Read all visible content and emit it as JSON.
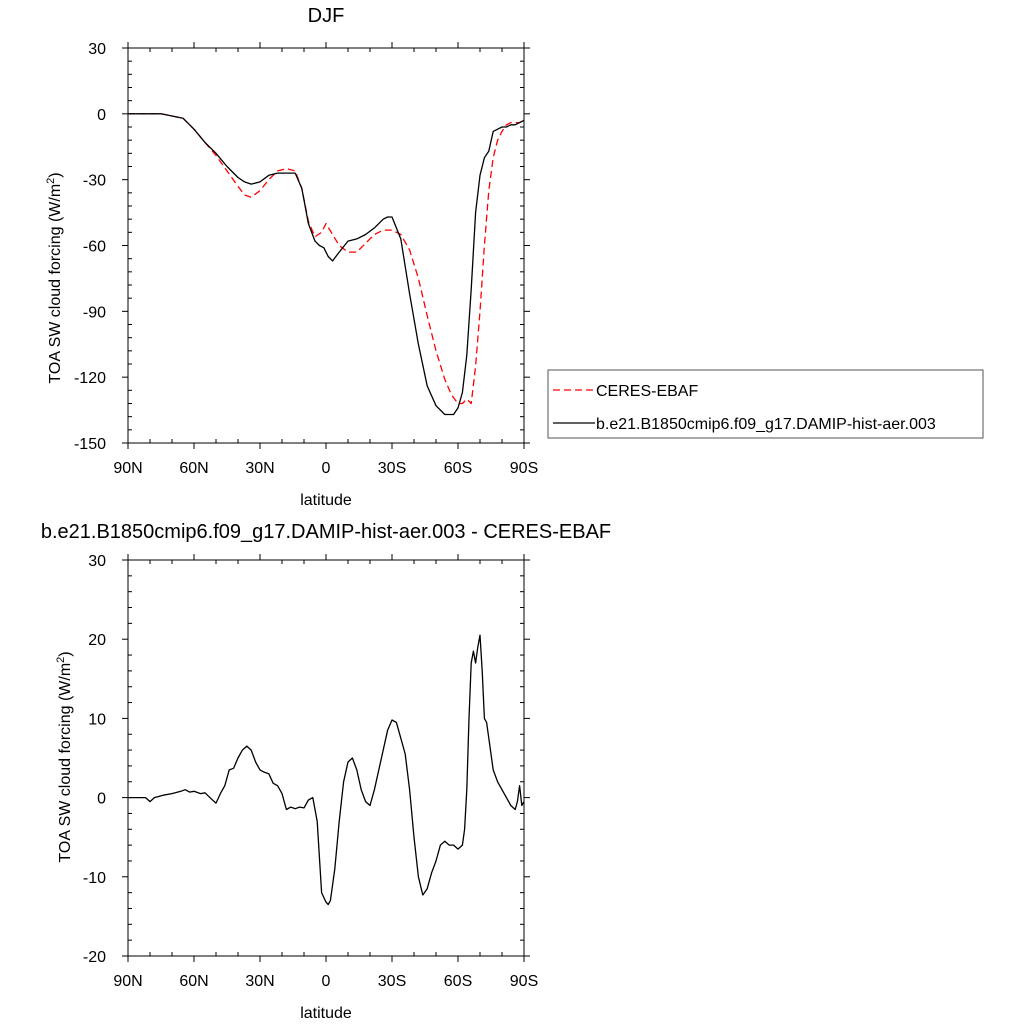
{
  "chart_data": [
    {
      "type": "line",
      "title": "DJF",
      "xlabel": "latitude",
      "ylabel": "TOA SW cloud forcing (W/m",
      "ylabel_sup": "2",
      "ylabel_close": ")",
      "xlim": [
        90,
        -90
      ],
      "ylim": [
        -150,
        30
      ],
      "x_ticks": [
        90,
        60,
        30,
        0,
        -30,
        -60,
        -90
      ],
      "x_tick_labels": [
        "90N",
        "60N",
        "30N",
        "0",
        "30S",
        "60S",
        "90S"
      ],
      "y_ticks": [
        30,
        0,
        -30,
        -60,
        -90,
        -120,
        -150
      ],
      "y_tick_labels": [
        "30",
        "0",
        "-30",
        "-60",
        "-90",
        "-120",
        "-150"
      ],
      "legend": "right",
      "series": [
        {
          "name": "CERES-EBAF",
          "color": "#ff0000",
          "dash": "dashed",
          "x": [
            90,
            85,
            80,
            75,
            70,
            65,
            60,
            55,
            50,
            45,
            40,
            37,
            34,
            30,
            26,
            22,
            18,
            14,
            11,
            8,
            5,
            2,
            0,
            -3,
            -6,
            -10,
            -14,
            -18,
            -22,
            -26,
            -30,
            -34,
            -38,
            -42,
            -46,
            -50,
            -54,
            -57,
            -60,
            -62,
            -64,
            -66,
            -68,
            -70,
            -72,
            -74,
            -76,
            -78,
            -80,
            -82,
            -84,
            -86,
            -88,
            -90
          ],
          "y": [
            0,
            0,
            0,
            0,
            -1,
            -2,
            -7,
            -13,
            -19,
            -26,
            -33,
            -37,
            -38,
            -35,
            -30,
            -26,
            -25,
            -26,
            -34,
            -49,
            -56,
            -54,
            -50,
            -55,
            -60,
            -63,
            -63,
            -59,
            -55,
            -53,
            -53,
            -55,
            -62,
            -75,
            -92,
            -108,
            -121,
            -128,
            -132,
            -132,
            -130,
            -132,
            -115,
            -90,
            -60,
            -35,
            -20,
            -12,
            -8,
            -5,
            -4,
            -4,
            -4,
            -3
          ]
        },
        {
          "name": "b.e21.B1850cmip6.f09_g17.DAMIP-hist-aer.003",
          "color": "#000000",
          "dash": "solid",
          "x": [
            90,
            85,
            80,
            75,
            70,
            65,
            60,
            55,
            50,
            45,
            40,
            37,
            34,
            30,
            26,
            22,
            18,
            14,
            11,
            8,
            5,
            3,
            1,
            -1,
            -3,
            -6,
            -10,
            -14,
            -18,
            -22,
            -26,
            -28,
            -30,
            -34,
            -38,
            -42,
            -46,
            -50,
            -54,
            -58,
            -60,
            -62,
            -64,
            -66,
            -68,
            -70,
            -72,
            -74,
            -76,
            -78,
            -80,
            -82,
            -84,
            -86,
            -88,
            -90
          ],
          "y": [
            0,
            0,
            0,
            0,
            -1,
            -2,
            -7,
            -13,
            -18,
            -24,
            -29,
            -31,
            -32,
            -31,
            -28,
            -27,
            -27,
            -27,
            -34,
            -50,
            -58,
            -60,
            -61,
            -65,
            -67,
            -63,
            -58,
            -57,
            -55,
            -52,
            -48,
            -47,
            -47,
            -57,
            -82,
            -105,
            -124,
            -133,
            -137,
            -137,
            -134,
            -127,
            -110,
            -80,
            -45,
            -28,
            -20,
            -17,
            -8,
            -7,
            -6,
            -6,
            -5,
            -5,
            -4,
            -3
          ]
        }
      ]
    },
    {
      "type": "line",
      "title": "b.e21.B1850cmip6.f09_g17.DAMIP-hist-aer.003 - CERES-EBAF",
      "xlabel": "latitude",
      "ylabel": "TOA SW cloud forcing (W/m",
      "ylabel_sup": "2",
      "ylabel_close": ")",
      "xlim": [
        90,
        -90
      ],
      "ylim": [
        -20,
        30
      ],
      "x_ticks": [
        90,
        60,
        30,
        0,
        -30,
        -60,
        -90
      ],
      "x_tick_labels": [
        "90N",
        "60N",
        "30N",
        "0",
        "30S",
        "60S",
        "90S"
      ],
      "y_ticks": [
        30,
        20,
        10,
        0,
        -10,
        -20
      ],
      "y_tick_labels": [
        "30",
        "20",
        "10",
        "0",
        "-10",
        "-20"
      ],
      "series": [
        {
          "color": "#000000",
          "dash": "solid",
          "x": [
            90,
            82,
            80,
            78,
            74,
            70,
            66,
            64,
            62,
            60,
            57,
            55,
            52,
            50,
            48,
            46,
            44,
            42,
            40,
            38,
            36,
            34,
            32,
            30,
            28,
            26,
            24,
            22,
            20,
            18,
            16,
            14,
            12,
            10,
            8,
            6,
            4,
            2,
            0,
            -1,
            -2,
            -4,
            -6,
            -8,
            -10,
            -12,
            -14,
            -16,
            -18,
            -20,
            -22,
            -24,
            -26,
            -28,
            -30,
            -32,
            -34,
            -36,
            -38,
            -40,
            -42,
            -44,
            -46,
            -48,
            -50,
            -52,
            -54,
            -56,
            -58,
            -60,
            -62,
            -63,
            -64,
            -65,
            -66,
            -67,
            -68,
            -69,
            -70,
            -71,
            -72,
            -73,
            -74,
            -76,
            -78,
            -80,
            -82,
            -84,
            -86,
            -87,
            -88,
            -89,
            -90
          ],
          "y": [
            0,
            0,
            -0.5,
            0,
            0.3,
            0.5,
            0.8,
            1,
            0.7,
            0.8,
            0.5,
            0.6,
            -0.2,
            -0.7,
            0.5,
            1.5,
            3.5,
            3.7,
            5,
            6,
            6.5,
            6,
            4.5,
            3.5,
            3.2,
            3,
            1.8,
            1.5,
            0.5,
            -1.5,
            -1.2,
            -1.4,
            -1.2,
            -1.3,
            -0.3,
            0,
            -3,
            -12,
            -13.2,
            -13.5,
            -13,
            -9,
            -3,
            2,
            4.5,
            5,
            3.5,
            1,
            -0.5,
            -1,
            1,
            3.5,
            6,
            8.5,
            9.8,
            9.5,
            7.5,
            5.5,
            1,
            -5,
            -10,
            -12.3,
            -11.5,
            -9.5,
            -8,
            -6,
            -5.5,
            -6,
            -6,
            -6.5,
            -6,
            -4,
            1,
            10,
            17,
            18.5,
            17,
            19,
            20.5,
            16,
            10,
            9.5,
            7.5,
            3.5,
            2,
            1,
            0,
            -1,
            -1.5,
            -0.5,
            1.5,
            -1,
            -0.5
          ]
        }
      ]
    }
  ]
}
